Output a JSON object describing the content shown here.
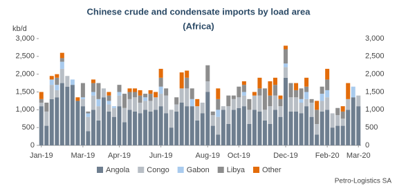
{
  "chart_data": {
    "type": "stacked-bar",
    "title": "Chinese crude and condensate imports by load area",
    "subtitle": "(Africa)",
    "y_label": "kb/d",
    "source": "Petro-Logistics SA",
    "categories": [
      "Jan-19",
      null,
      null,
      null,
      null,
      null,
      null,
      null,
      "Mar-19",
      null,
      null,
      null,
      null,
      null,
      null,
      "Apr-19",
      null,
      null,
      null,
      null,
      null,
      null,
      null,
      "Jun-19",
      null,
      null,
      null,
      null,
      null,
      null,
      null,
      null,
      "Aug-19",
      null,
      null,
      null,
      null,
      null,
      "Oct-19",
      null,
      null,
      null,
      null,
      null,
      null,
      null,
      null,
      "Dec-19",
      null,
      null,
      null,
      null,
      null,
      null,
      null,
      "Feb-20",
      null,
      null,
      null,
      null,
      null,
      "Mar-20"
    ],
    "ylim": [
      0,
      3000
    ],
    "yticks": [
      0,
      500,
      {
        "value": 1000,
        "label": "1,000"
      },
      {
        "value": 1500,
        "label": "1,500"
      },
      {
        "value": 2000,
        "label": "2,000"
      },
      {
        "value": 2500,
        "label": "2,500"
      },
      {
        "value": 3000,
        "label": "3,000"
      }
    ],
    "legend": "bottom",
    "series": [
      {
        "name": "Angola",
        "color": "#6e7e8f",
        "values": [
          1100,
          550,
          1300,
          1350,
          1750,
          1650,
          1700,
          1250,
          1100,
          400,
          1000,
          700,
          1350,
          950,
          800,
          1100,
          650,
          1000,
          950,
          900,
          1000,
          950,
          1000,
          1100,
          900,
          500,
          950,
          1200,
          1100,
          1100,
          700,
          900,
          1500,
          550,
          300,
          1000,
          600,
          1000,
          1050,
          1100,
          600,
          1000,
          950,
          700,
          600,
          1000,
          800,
          1900,
          950,
          950,
          900,
          1100,
          800,
          300,
          950,
          1000,
          500,
          550,
          550,
          1000,
          1350,
          1100
        ]
      },
      {
        "name": "Congo",
        "color": "#b8bec5",
        "values": [
          100,
          400,
          400,
          200,
          400,
          300,
          0,
          0,
          200,
          400,
          400,
          400,
          250,
          200,
          250,
          300,
          400,
          300,
          400,
          300,
          250,
          300,
          350,
          350,
          500,
          500,
          200,
          400,
          500,
          0,
          400,
          300,
          300,
          300,
          500,
          100,
          500,
          300,
          300,
          300,
          400,
          400,
          450,
          300,
          500,
          400,
          300,
          300,
          400,
          400,
          300,
          200,
          400,
          300,
          300,
          350,
          400,
          300,
          200,
          300,
          0,
          300
        ]
      },
      {
        "name": "Gabon",
        "color": "#a9cbee",
        "values": [
          0,
          0,
          150,
          150,
          200,
          0,
          150,
          0,
          50,
          100,
          100,
          200,
          0,
          100,
          50,
          100,
          0,
          0,
          0,
          0,
          100,
          0,
          0,
          200,
          0,
          0,
          0,
          0,
          0,
          200,
          0,
          0,
          0,
          0,
          200,
          0,
          0,
          0,
          0,
          100,
          0,
          0,
          0,
          0,
          0,
          0,
          0,
          100,
          0,
          0,
          100,
          200,
          0,
          0,
          200,
          200,
          0,
          0,
          0,
          0,
          300,
          0
        ]
      },
      {
        "name": "Libya",
        "color": "#8d8d8d",
        "values": [
          100,
          250,
          0,
          200,
          100,
          0,
          0,
          0,
          400,
          50,
          250,
          450,
          0,
          150,
          0,
          200,
          400,
          200,
          150,
          200,
          100,
          200,
          0,
          250,
          200,
          0,
          200,
          0,
          300,
          300,
          0,
          0,
          450,
          100,
          300,
          0,
          300,
          100,
          300,
          200,
          300,
          0,
          200,
          600,
          300,
          300,
          200,
          400,
          400,
          200,
          300,
          150,
          100,
          400,
          200,
          300,
          0,
          200,
          200,
          0,
          0,
          0
        ]
      },
      {
        "name": "Other",
        "color": "#e36c0a",
        "values": [
          200,
          0,
          100,
          100,
          150,
          0,
          0,
          100,
          0,
          0,
          100,
          0,
          0,
          100,
          0,
          0,
          0,
          100,
          100,
          150,
          0,
          100,
          150,
          250,
          0,
          0,
          0,
          450,
          200,
          0,
          200,
          0,
          0,
          0,
          300,
          0,
          0,
          0,
          0,
          100,
          0,
          100,
          300,
          0,
          400,
          200,
          100,
          100,
          0,
          200,
          0,
          250,
          0,
          250,
          0,
          300,
          0,
          0,
          150,
          450,
          0,
          0
        ]
      }
    ]
  }
}
